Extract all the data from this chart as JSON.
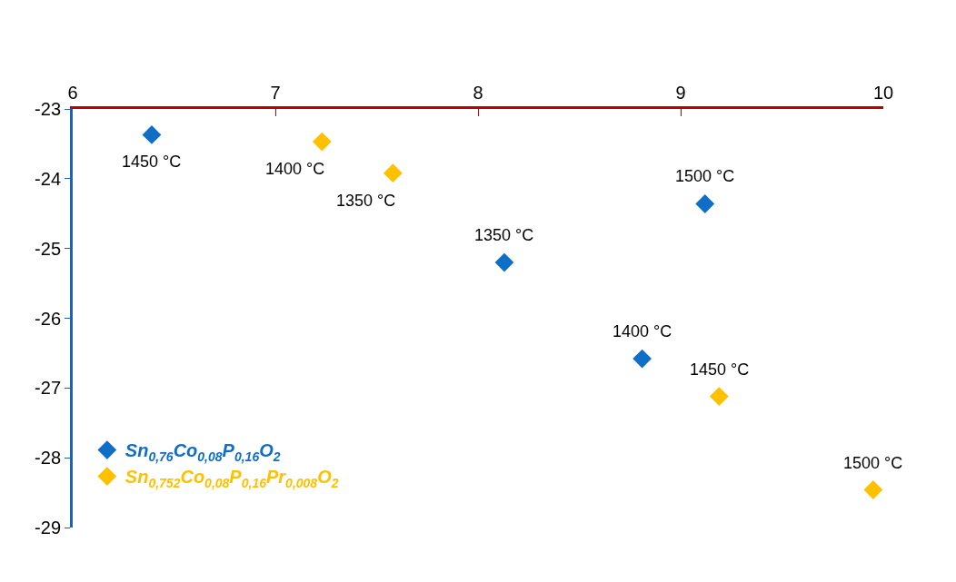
{
  "chart_data": {
    "type": "scatter",
    "marker": "diamond",
    "legend": "bottom left",
    "xlim": [
      6,
      10
    ],
    "xticks": [
      6,
      7,
      8,
      9,
      10
    ],
    "ylim": [
      -29,
      -23
    ],
    "yticks": [
      -29,
      -28,
      -27,
      -26,
      -25,
      -24,
      -23
    ],
    "series": [
      {
        "name": "Sn$_{0,76}$Co$_{0,08}$P$_{0,16}$O$_{2}$",
        "color": "#0f6fc6",
        "x": [
          6.39,
          8.13,
          8.81,
          9.12
        ],
        "values": [
          -23.37,
          -25.2,
          -26.58,
          -24.36
        ]
      },
      {
        "name": "Sn$_{0,752}$Co$_{0,08}$P$_{0,16}$Pr$_{0,008}$O$_{2}$",
        "color": "#ffc000",
        "x": [
          7.23,
          7.58,
          9.19,
          9.95
        ],
        "values": [
          -23.47,
          -23.92,
          -27.12,
          -28.46
        ]
      }
    ],
    "annotations": [
      {
        "text": "1450 °C",
        "x": 6.39,
        "y": -23.37
      },
      {
        "text": "1350 °C",
        "x": 8.13,
        "y": -25.2
      },
      {
        "text": "1400 °C",
        "x": 8.81,
        "y": -26.58
      },
      {
        "text": "1500 °C",
        "x": 9.12,
        "y": -24.36
      },
      {
        "text": "1400 °C",
        "x": 7.23,
        "y": -23.47
      },
      {
        "text": "1350 °C",
        "x": 7.58,
        "y": -23.92
      },
      {
        "text": "1450 °C",
        "x": 9.19,
        "y": -27.12
      },
      {
        "text": "1500 °C",
        "x": 9.95,
        "y": -28.46
      }
    ]
  }
}
